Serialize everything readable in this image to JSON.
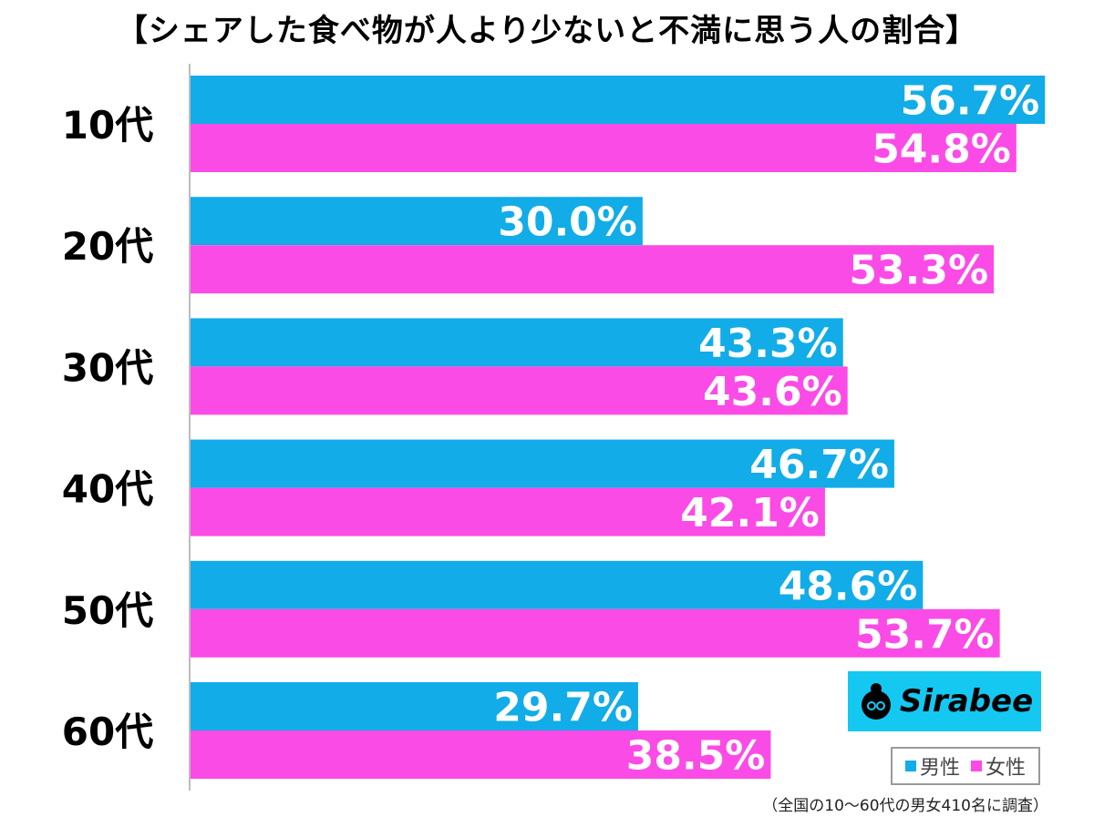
{
  "title": "【シェアした食べ物が人より少ないと不満に思う人の割合】",
  "footnote": "（全国の10～60代の男女410名に調査）",
  "logo": {
    "text": "Sirabee"
  },
  "legend": {
    "male_label": "男性",
    "female_label": "女性"
  },
  "colors": {
    "male": "#12ace8",
    "female": "#fb4be6"
  },
  "chart_data": {
    "type": "bar",
    "orientation": "horizontal",
    "categories": [
      "10代",
      "20代",
      "30代",
      "40代",
      "50代",
      "60代"
    ],
    "series": [
      {
        "name": "男性",
        "values": [
          56.7,
          30.0,
          43.3,
          46.7,
          48.6,
          29.7
        ]
      },
      {
        "name": "女性",
        "values": [
          54.8,
          53.3,
          43.6,
          42.1,
          53.7,
          38.5
        ]
      }
    ],
    "unit": "%",
    "xlim": [
      0,
      100
    ],
    "legend_position": "bottom-right",
    "grid": false
  }
}
